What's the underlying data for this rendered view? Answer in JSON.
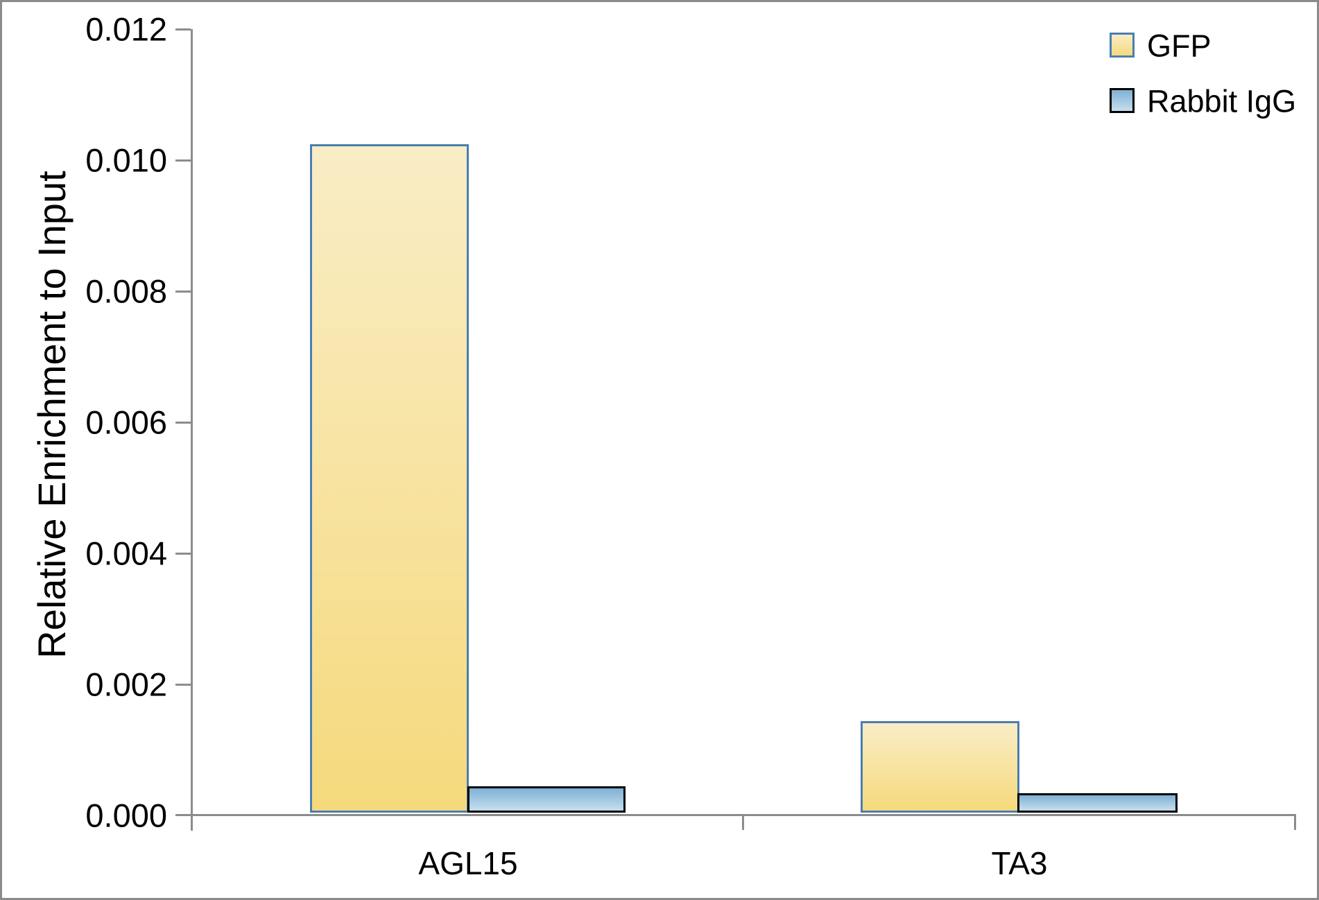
{
  "chart_data": {
    "type": "bar",
    "title": "",
    "xlabel": "",
    "ylabel": "Relative Enrichment to Input",
    "categories": [
      "AGL15",
      "TA3"
    ],
    "series": [
      {
        "name": "GFP",
        "values": [
          0.0102,
          0.0014
        ],
        "fill_top": "#F9EDC6",
        "fill_bottom": "#F6D97C",
        "border_color": "#4A7EB0"
      },
      {
        "name": "Rabbit IgG",
        "values": [
          0.0004,
          0.0003
        ],
        "fill_top": "#7FB1D4",
        "fill_bottom": "#C6DEEE",
        "border_color": "#000000"
      }
    ],
    "ylim": [
      0,
      0.012
    ],
    "ytick_step": 0.002,
    "ytick_labels": [
      "0.012",
      "0.010",
      "0.008",
      "0.006",
      "0.004",
      "0.002",
      "0.000"
    ],
    "grid": false,
    "legend_position": "top-right",
    "axis_color": "#8C8C8C",
    "frame_color": "#8A8A8A"
  }
}
